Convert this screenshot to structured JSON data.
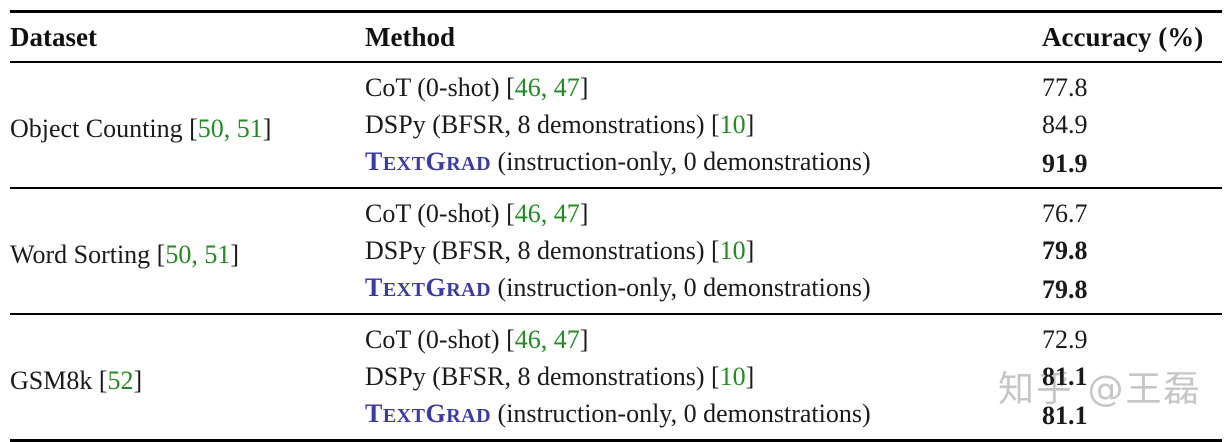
{
  "colors": {
    "text": "#1a1a1a",
    "citation_green": "#228B22",
    "textgrad_blue": "#3a3aaa",
    "rule_black": "#000000",
    "watermark_gray": "#c6c6c6"
  },
  "watermark": {
    "text": "知乎 @王磊"
  },
  "table": {
    "headers": {
      "dataset": "Dataset",
      "method": "Method",
      "accuracy": "Accuracy (%)"
    },
    "groups": [
      {
        "dataset_segments": [
          {
            "t": "Object Counting ["
          },
          {
            "t": "50, 51",
            "c": "cite",
            "n": "citation-link"
          },
          {
            "t": "]"
          }
        ],
        "rows": [
          {
            "method_segments": [
              {
                "t": "CoT (0-shot) ["
              },
              {
                "t": "46, 47",
                "c": "cite",
                "n": "citation-link"
              },
              {
                "t": "]"
              }
            ],
            "accuracy": "77.8",
            "bold": false
          },
          {
            "method_segments": [
              {
                "t": "DSPy (BFSR, 8 demonstrations) ["
              },
              {
                "t": "10",
                "c": "cite",
                "n": "citation-link"
              },
              {
                "t": "]"
              }
            ],
            "accuracy": "84.9",
            "bold": false
          },
          {
            "method_segments": [
              {
                "t": "T",
                "c": "tg tg-big",
                "n": "textgrad-wordmark"
              },
              {
                "t": "EXT",
                "c": "tg tg-small",
                "n": "textgrad-wordmark"
              },
              {
                "t": "G",
                "c": "tg tg-big",
                "n": "textgrad-wordmark"
              },
              {
                "t": "RAD",
                "c": "tg tg-small",
                "n": "textgrad-wordmark"
              },
              {
                "t": " (instruction-only, 0 demonstrations)"
              }
            ],
            "accuracy": "91.9",
            "bold": true
          }
        ]
      },
      {
        "dataset_segments": [
          {
            "t": "Word Sorting ["
          },
          {
            "t": "50, 51",
            "c": "cite",
            "n": "citation-link"
          },
          {
            "t": "]"
          }
        ],
        "rows": [
          {
            "method_segments": [
              {
                "t": "CoT (0-shot) ["
              },
              {
                "t": "46, 47",
                "c": "cite",
                "n": "citation-link"
              },
              {
                "t": "]"
              }
            ],
            "accuracy": "76.7",
            "bold": false
          },
          {
            "method_segments": [
              {
                "t": "DSPy (BFSR, 8 demonstrations) ["
              },
              {
                "t": "10",
                "c": "cite",
                "n": "citation-link"
              },
              {
                "t": "]"
              }
            ],
            "accuracy": "79.8",
            "bold": true
          },
          {
            "method_segments": [
              {
                "t": "T",
                "c": "tg tg-big",
                "n": "textgrad-wordmark"
              },
              {
                "t": "EXT",
                "c": "tg tg-small",
                "n": "textgrad-wordmark"
              },
              {
                "t": "G",
                "c": "tg tg-big",
                "n": "textgrad-wordmark"
              },
              {
                "t": "RAD",
                "c": "tg tg-small",
                "n": "textgrad-wordmark"
              },
              {
                "t": " (instruction-only, 0 demonstrations)"
              }
            ],
            "accuracy": "79.8",
            "bold": true
          }
        ]
      },
      {
        "dataset_segments": [
          {
            "t": "GSM8k ["
          },
          {
            "t": "52",
            "c": "cite",
            "n": "citation-link"
          },
          {
            "t": "]"
          }
        ],
        "rows": [
          {
            "method_segments": [
              {
                "t": "CoT (0-shot) ["
              },
              {
                "t": "46, 47",
                "c": "cite",
                "n": "citation-link"
              },
              {
                "t": "]"
              }
            ],
            "accuracy": "72.9",
            "bold": false
          },
          {
            "method_segments": [
              {
                "t": "DSPy (BFSR, 8 demonstrations) ["
              },
              {
                "t": "10",
                "c": "cite",
                "n": "citation-link"
              },
              {
                "t": "]"
              }
            ],
            "accuracy": "81.1",
            "bold": true
          },
          {
            "method_segments": [
              {
                "t": "T",
                "c": "tg tg-big",
                "n": "textgrad-wordmark"
              },
              {
                "t": "EXT",
                "c": "tg tg-small",
                "n": "textgrad-wordmark"
              },
              {
                "t": "G",
                "c": "tg tg-big",
                "n": "textgrad-wordmark"
              },
              {
                "t": "RAD",
                "c": "tg tg-small",
                "n": "textgrad-wordmark"
              },
              {
                "t": " (instruction-only, 0 demonstrations)"
              }
            ],
            "accuracy": "81.1",
            "bold": true
          }
        ]
      }
    ]
  }
}
